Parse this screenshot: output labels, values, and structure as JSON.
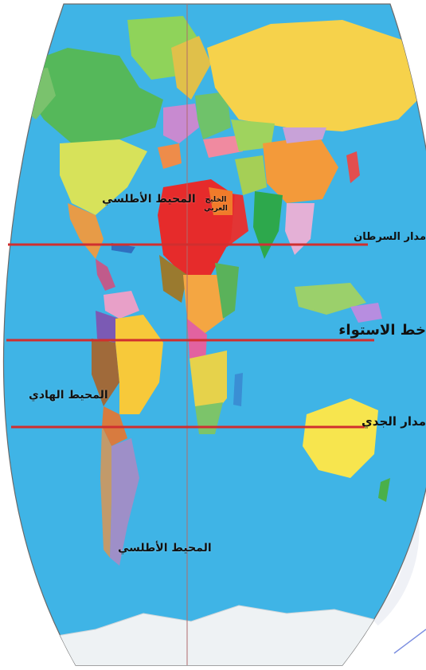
{
  "colors": {
    "ocean": "#3fb4e6",
    "tropic_line": "#d02f2f",
    "meridian": "#b06b6b",
    "antarctica": "#eef2f4",
    "background": "#ffffff",
    "watermark": "#d6dbe8"
  },
  "ocean_labels": {
    "atlantic_north": "المحيط الأطلسي",
    "pacific": "المحيط الهادي",
    "atlantic_south": "المحيط الأطلسي",
    "gulf": "الخليج العربي"
  },
  "latitude_lines": {
    "tropic_cancer": "مدار السرطان",
    "equator": "خط الاستواء",
    "tropic_capricorn": "مدار الجدي"
  }
}
